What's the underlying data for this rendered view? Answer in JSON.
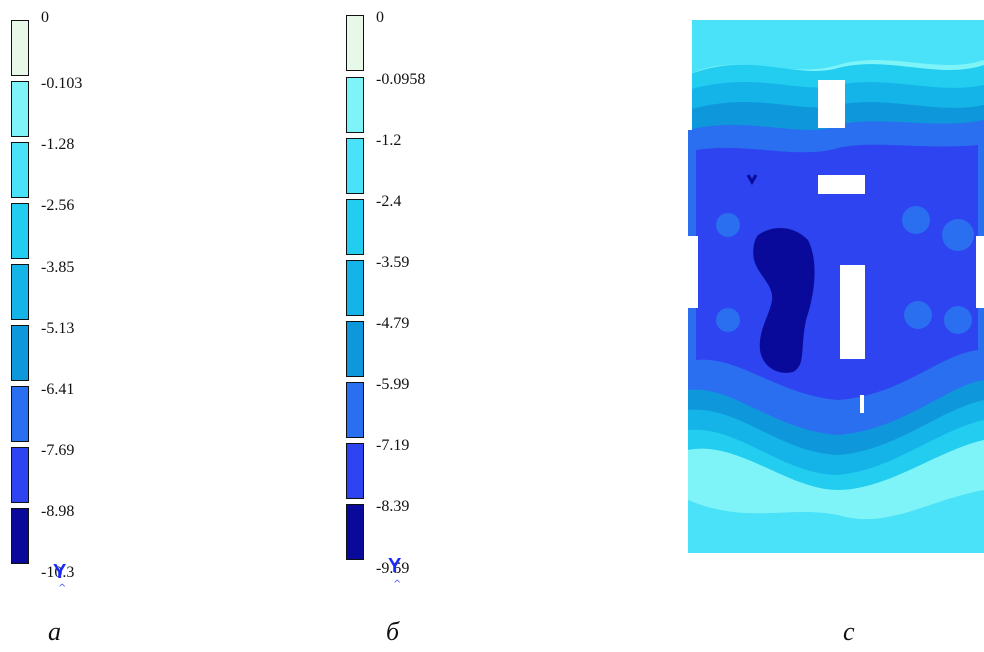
{
  "colors": {
    "levels": [
      "#e8f8e8",
      "#7ff4f8",
      "#49e2f8",
      "#22cdf0",
      "#14b4e8",
      "#0f97db",
      "#2a6ff0",
      "#2d44f0",
      "#0a0a9a"
    ],
    "background": "#ffffff"
  },
  "legends": [
    {
      "id": "a",
      "ticks": [
        "0",
        "-0.103",
        "-1.28",
        "-2.56",
        "-3.85",
        "-5.13",
        "-6.41",
        "-7.69",
        "-8.98",
        "-10.3"
      ],
      "axis_label": "Y",
      "caption": "a"
    },
    {
      "id": "b",
      "ticks": [
        "0",
        "-0.0958",
        "-1.2",
        "-2.4",
        "-3.59",
        "-4.79",
        "-5.99",
        "-7.19",
        "-8.39",
        "-9.59"
      ],
      "axis_label": "Y",
      "caption": "б"
    }
  ],
  "contour": {
    "caption": "c"
  }
}
